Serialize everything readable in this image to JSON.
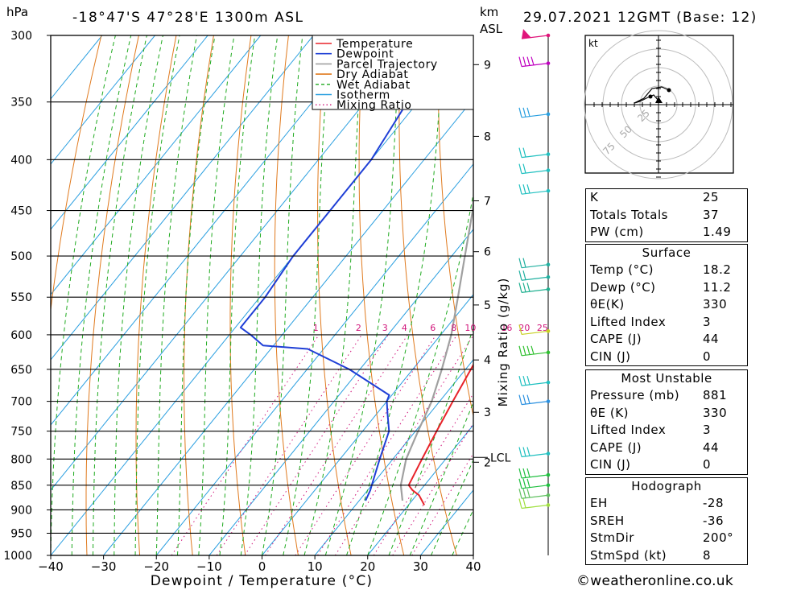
{
  "header": {
    "location": "-18°47'S  47°28'E  1300m  ASL",
    "datetime": "29.07.2021  12GMT  (Base: 12)",
    "hpa_label": "hPa",
    "km_label": "km",
    "asl_label": "ASL"
  },
  "chart_data": {
    "type": "line",
    "xlabel": "Dewpoint / Temperature (°C)",
    "ylabel": "hPa",
    "right_label": "Mixing Ratio (g/kg)",
    "xlim": [
      -40,
      40
    ],
    "ylim": [
      1000,
      300
    ],
    "x_ticks": [
      "−40",
      "−30",
      "−20",
      "−10",
      "0",
      "10",
      "20",
      "30",
      "40"
    ],
    "pressure_levels": [
      300,
      350,
      400,
      450,
      500,
      550,
      600,
      650,
      700,
      750,
      800,
      850,
      900,
      950,
      1000
    ],
    "km_ticks": [
      {
        "label": "9",
        "p": 321
      },
      {
        "label": "8",
        "p": 379
      },
      {
        "label": "7",
        "p": 440
      },
      {
        "label": "6",
        "p": 495
      },
      {
        "label": "5",
        "p": 560
      },
      {
        "label": "4",
        "p": 636
      },
      {
        "label": "3",
        "p": 718
      },
      {
        "label": "2",
        "p": 806
      }
    ],
    "lcl": {
      "label": "LCL",
      "p": 797
    },
    "mixing_ratio_labels": [
      "1",
      "2",
      "3",
      "4",
      "6",
      "8",
      "10",
      "16",
      "20",
      "25"
    ],
    "legend": [
      {
        "name": "Temperature",
        "color": "#e8232a",
        "style": "solid"
      },
      {
        "name": "Dewpoint",
        "color": "#1f3fd6",
        "style": "solid"
      },
      {
        "name": "Parcel Trajectory",
        "color": "#a0a0a0",
        "style": "solid"
      },
      {
        "name": "Dry Adiabat",
        "color": "#e07a1e",
        "style": "solid"
      },
      {
        "name": "Wet Adiabat",
        "color": "#1faa1f",
        "style": "dashed"
      },
      {
        "name": "Isotherm",
        "color": "#2a9fe0",
        "style": "solid"
      },
      {
        "name": "Mixing Ratio",
        "color": "#d0147a",
        "style": "dotted"
      }
    ],
    "series": [
      {
        "name": "Temperature",
        "points": [
          [
            890,
            23.0
          ],
          [
            870,
            20.5
          ],
          [
            860,
            18.5
          ],
          [
            850,
            17.0
          ],
          [
            800,
            15.5
          ],
          [
            750,
            14.0
          ],
          [
            700,
            12.5
          ],
          [
            650,
            11.0
          ],
          [
            620,
            10.0
          ],
          [
            610,
            10.5
          ],
          [
            600,
            10.0
          ],
          [
            550,
            5.5
          ],
          [
            500,
            0.0
          ],
          [
            450,
            -5.0
          ],
          [
            400,
            -11.0
          ],
          [
            350,
            -18.0
          ],
          [
            310,
            -24.5
          ],
          [
            300,
            -24.0
          ]
        ]
      },
      {
        "name": "Dewpoint",
        "points": [
          [
            881,
            11.2
          ],
          [
            860,
            10.5
          ],
          [
            850,
            10.0
          ],
          [
            800,
            7.5
          ],
          [
            750,
            5.0
          ],
          [
            720,
            2.0
          ],
          [
            700,
            0.0
          ],
          [
            690,
            -0.5
          ],
          [
            650,
            -12.0
          ],
          [
            620,
            -23.0
          ],
          [
            615,
            -32.0
          ],
          [
            600,
            -36.0
          ],
          [
            590,
            -39.0
          ],
          [
            550,
            -39.0
          ],
          [
            500,
            -40.0
          ],
          [
            450,
            -40.0
          ],
          [
            400,
            -40.0
          ],
          [
            350,
            -42.0
          ],
          [
            310,
            -45.0
          ],
          [
            300,
            -41.0
          ]
        ]
      },
      {
        "name": "Parcel Trajectory",
        "points": [
          [
            881,
            18.2
          ],
          [
            850,
            15.5
          ],
          [
            800,
            12.5
          ],
          [
            750,
            10.5
          ],
          [
            700,
            8.5
          ],
          [
            650,
            5.5
          ],
          [
            600,
            2.0
          ],
          [
            550,
            -2.5
          ],
          [
            500,
            -7.5
          ],
          [
            450,
            -13.0
          ],
          [
            400,
            -20.0
          ],
          [
            350,
            -28.0
          ],
          [
            300,
            -38.0
          ]
        ]
      }
    ]
  },
  "hodograph": {
    "unit": "kt",
    "ring_labels": [
      "25",
      "50",
      "75"
    ]
  },
  "indices": [
    {
      "label": "K",
      "value": "25"
    },
    {
      "label": "Totals Totals",
      "value": "37"
    },
    {
      "label": "PW (cm)",
      "value": "1.49"
    }
  ],
  "surface": {
    "title": "Surface",
    "rows": [
      {
        "label": "Temp (°C)",
        "value": "18.2"
      },
      {
        "label": "Dewp (°C)",
        "value": "11.2"
      },
      {
        "label": "θE(K)",
        "value": "330"
      },
      {
        "label": "Lifted Index",
        "value": "3"
      },
      {
        "label": "CAPE (J)",
        "value": "44"
      },
      {
        "label": "CIN (J)",
        "value": "0"
      }
    ]
  },
  "most_unstable": {
    "title": "Most Unstable",
    "rows": [
      {
        "label": "Pressure (mb)",
        "value": "881"
      },
      {
        "label": "θE (K)",
        "value": "330"
      },
      {
        "label": "Lifted Index",
        "value": "3"
      },
      {
        "label": "CAPE (J)",
        "value": "44"
      },
      {
        "label": "CIN (J)",
        "value": "0"
      }
    ]
  },
  "hodograph_table": {
    "title": "Hodograph",
    "rows": [
      {
        "label": "EH",
        "value": "-28"
      },
      {
        "label": "SREH",
        "value": "-36"
      },
      {
        "label": "StmDir",
        "value": "200°"
      },
      {
        "label": "StmSpd (kt)",
        "value": "8"
      }
    ]
  },
  "watermark": "©weatheronline.co.uk",
  "colors": {
    "temperature": "#e8232a",
    "dewpoint": "#1f3fd6",
    "parcel": "#a0a0a0",
    "dry_adiabat": "#e07a1e",
    "wet_adiabat": "#1faa1f",
    "isotherm": "#2a9fe0",
    "mixing_ratio": "#d0147a"
  }
}
